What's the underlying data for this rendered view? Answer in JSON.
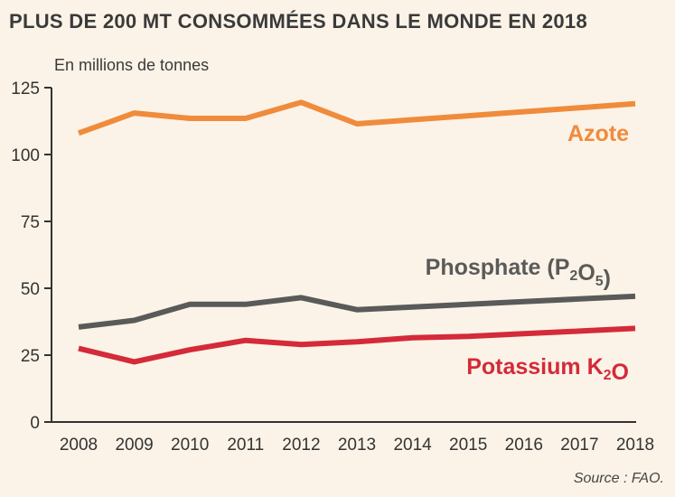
{
  "title": "PLUS DE 200 MT CONSOMMÉES DANS LE MONDE EN 2018",
  "unit_label": "En millions de tonnes",
  "source": "Source : FAO.",
  "chart_data": {
    "type": "line",
    "title": "PLUS DE 200 MT CONSOMMÉES DANS LE MONDE EN 2018",
    "ylabel": "En millions de tonnes",
    "xlabel": "",
    "x": [
      "2008",
      "2009",
      "2010",
      "2011",
      "2012",
      "2013",
      "2014",
      "2015",
      "2016",
      "2017",
      "2018"
    ],
    "ylim": [
      0,
      125
    ],
    "yticks": [
      0,
      25,
      50,
      75,
      100,
      125
    ],
    "grid": false,
    "series": [
      {
        "name": "Azote",
        "color": "#f08b3c",
        "label_parts": [
          {
            "text": "Azote",
            "sub": false
          }
        ],
        "values": [
          108,
          115.5,
          113.5,
          113.5,
          119.5,
          111.5,
          113,
          114.5,
          116,
          117.5,
          119
        ]
      },
      {
        "name": "Phosphate (P2O5)",
        "color": "#5a5a5a",
        "label_parts": [
          {
            "text": "Phosphate (P",
            "sub": false
          },
          {
            "text": "2",
            "sub": true
          },
          {
            "text": "O",
            "sub": false
          },
          {
            "text": "5",
            "sub": true
          },
          {
            "text": ")",
            "sub": false
          }
        ],
        "values": [
          35.5,
          38,
          44,
          44,
          46.5,
          42,
          43,
          44,
          45,
          46,
          47
        ]
      },
      {
        "name": "Potassium K2O",
        "color": "#d42a3a",
        "label_parts": [
          {
            "text": "Potassium K",
            "sub": false
          },
          {
            "text": "2",
            "sub": true
          },
          {
            "text": "O",
            "sub": false
          }
        ],
        "values": [
          27.5,
          22.5,
          27,
          30.5,
          29,
          30,
          31.5,
          32,
          33,
          34,
          35
        ]
      }
    ]
  }
}
